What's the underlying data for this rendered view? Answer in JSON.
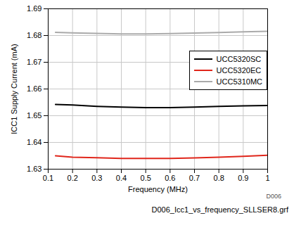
{
  "chart_data": {
    "type": "line",
    "x_label": "Frequency (MHz)",
    "y_label": "ICC1 Supply Current (mA)",
    "x": [
      0.13,
      0.2,
      0.3,
      0.4,
      0.5,
      0.6,
      0.7,
      0.8,
      0.9,
      1.0
    ],
    "series": [
      {
        "name": "UCC5320SC",
        "color": "#000000",
        "values": [
          1.6542,
          1.654,
          1.6535,
          1.6532,
          1.653,
          1.653,
          1.6532,
          1.6535,
          1.6537,
          1.6538
        ]
      },
      {
        "name": "UCC5320EC",
        "color": "#e0261b",
        "values": [
          1.635,
          1.6345,
          1.6343,
          1.634,
          1.634,
          1.634,
          1.6342,
          1.6345,
          1.6348,
          1.6352
        ]
      },
      {
        "name": "UCC5310MC",
        "color": "#aaaaaa",
        "values": [
          1.6812,
          1.681,
          1.6808,
          1.6806,
          1.6806,
          1.6807,
          1.6809,
          1.6811,
          1.6814,
          1.6816
        ]
      }
    ],
    "xlim": [
      0.1,
      1
    ],
    "xticks": [
      0.1,
      0.2,
      0.3,
      0.4,
      0.5,
      0.6,
      0.7,
      0.8,
      0.9,
      1
    ],
    "ylim": [
      1.63,
      1.69
    ],
    "yticks": [
      1.63,
      1.64,
      1.65,
      1.66,
      1.67,
      1.68,
      1.69
    ],
    "grid": true,
    "legend": "right",
    "annotations": [
      "D006",
      "D006_Icc1_vs_frequency_SLLSER8.grf"
    ]
  }
}
